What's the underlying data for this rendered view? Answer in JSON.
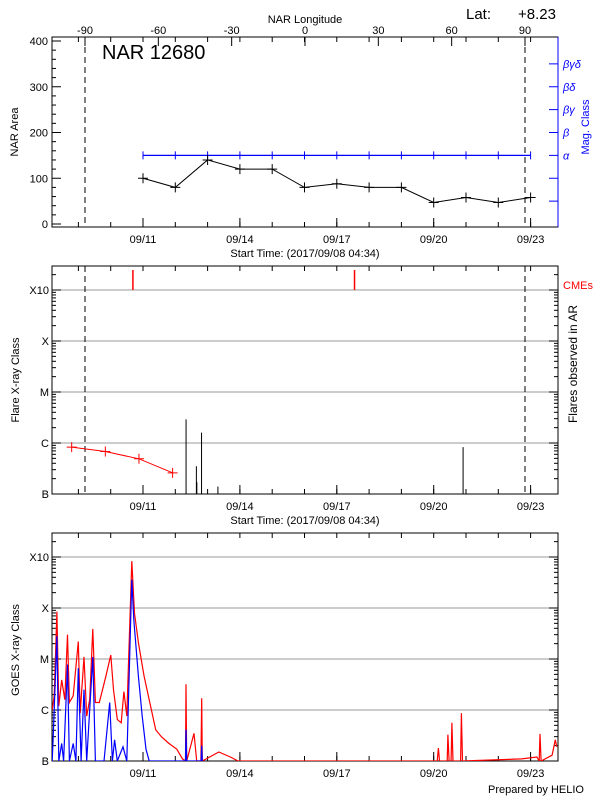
{
  "header": {
    "top_axis_title": "NAR Longitude",
    "lat_label": "Lat:",
    "lat_value": "+8.23",
    "region_title": "NAR 12680",
    "credit": "Prepared by HELIO"
  },
  "colors": {
    "axis": "#000000",
    "mag_class": "#0000ff",
    "flare_red": "#ff0000",
    "goes_long": "#ff0000",
    "goes_short": "#0000ff",
    "grid": "#999999"
  },
  "chart_data": [
    {
      "type": "line",
      "title": "NAR 12680",
      "xlabel": "Start Time: (2017/09/08 04:34)",
      "ylabel": "NAR Area",
      "y2label": "Mag. Class",
      "x_top_label": "NAR Longitude",
      "xlim": [
        "09/08 04:34",
        "09/23 20:40"
      ],
      "ylim": [
        -7,
        409
      ],
      "x_ticks": [
        "09/11",
        "09/14",
        "09/17",
        "09/20",
        "09/23"
      ],
      "y_ticks": [
        0,
        100,
        200,
        300,
        400
      ],
      "top_ticks": [
        -90,
        -60,
        -30,
        0,
        30,
        60,
        90
      ],
      "limb_longitudes": [
        -90,
        90
      ],
      "y2_ticks": [
        {
          "v": 50,
          "label": ""
        },
        {
          "v": 100,
          "label": ""
        },
        {
          "v": 150,
          "label": "α"
        },
        {
          "v": 200,
          "label": "β"
        },
        {
          "v": 250,
          "label": "βγ"
        },
        {
          "v": 300,
          "label": "βδ"
        },
        {
          "v": 350,
          "label": "βγδ"
        }
      ],
      "series": [
        {
          "kind": "area",
          "x": [
            "09/11 00:00",
            "09/12 00:00",
            "09/13 00:00",
            "09/14 00:00",
            "09/15 00:00",
            "09/16 00:00",
            "09/17 00:00",
            "09/18 00:00",
            "09/19 00:00",
            "09/20 00:00",
            "09/21 00:00",
            "09/22 00:00",
            "09/23 00:00"
          ],
          "values": [
            100,
            80,
            140,
            120,
            120,
            80,
            88,
            80,
            80,
            47,
            58,
            47,
            58
          ]
        },
        {
          "kind": "mag_class",
          "x": [
            "09/11 00:00",
            "09/12 00:00",
            "09/13 00:00",
            "09/14 00:00",
            "09/15 00:00",
            "09/16 00:00",
            "09/17 00:00",
            "09/18 00:00",
            "09/19 00:00",
            "09/20 00:00",
            "09/21 00:00",
            "09/22 00:00",
            "09/23 00:00"
          ],
          "values": [
            "α",
            "α",
            "α",
            "α",
            "α",
            "α",
            "α",
            "α",
            "α",
            "α",
            "α",
            "α",
            "α"
          ]
        }
      ]
    },
    {
      "type": "bar",
      "xlabel": "Start Time: (2017/09/08 04:34)",
      "ylabel": "Flare X-ray Class",
      "y2label": "Flares observed in AR",
      "cme_label": "CMEs",
      "yscale": "log",
      "ylim": [
        1e-07,
        0.003
      ],
      "y_ticks": [
        {
          "v": 1e-07,
          "label": "B"
        },
        {
          "v": 1e-06,
          "label": "C"
        },
        {
          "v": 1e-05,
          "label": "M"
        },
        {
          "v": 0.0001,
          "label": "X"
        },
        {
          "v": 0.001,
          "label": "X10"
        }
      ],
      "x_ticks": [
        "09/11",
        "09/14",
        "09/17",
        "09/20",
        "09/23"
      ],
      "grid": true,
      "trend": {
        "x": [
          "09/08 19:00",
          "09/09 20:00",
          "09/10 21:00",
          "09/11 22:00"
        ],
        "values": [
          8.3e-07,
          6.8e-07,
          4.9e-07,
          2.6e-07
        ]
      },
      "flares": {
        "x": [
          "09/12 08:00",
          "09/12 15:40",
          "09/12 16:00",
          "09/12 19:30",
          "09/13 07:40",
          "09/20 21:50"
        ],
        "values": [
          2.9e-06,
          3.5e-07,
          1.7e-07,
          1.6e-06,
          1.4e-07,
          8.3e-07
        ]
      },
      "cmes": [
        "09/10 16:30",
        "09/17 13:10"
      ]
    },
    {
      "type": "line",
      "ylabel": "GOES X-ray Class",
      "yscale": "log",
      "ylim": [
        1e-07,
        0.003
      ],
      "y_ticks": [
        {
          "v": 1e-07,
          "label": "B"
        },
        {
          "v": 1e-06,
          "label": "C"
        },
        {
          "v": 1e-05,
          "label": "M"
        },
        {
          "v": 0.0001,
          "label": "X"
        },
        {
          "v": 0.001,
          "label": "X10"
        }
      ],
      "x_ticks": [
        "09/11",
        "09/14",
        "09/17",
        "09/20",
        "09/23"
      ],
      "grid": true,
      "series": [
        {
          "kind": "long",
          "color": "#ff0000",
          "x": [
            "09/08 04:34",
            "09/08 06:00",
            "09/08 08:00",
            "09/08 09:25",
            "09/08 11:35",
            "09/08 13:55",
            "09/08 15:55",
            "09/08 17:20",
            "09/08 20:10",
            "09/08 23:55",
            "09/09 01:20",
            "09/09 04:10",
            "09/09 06:10",
            "09/09 08:25",
            "09/09 10:40",
            "09/09 12:40",
            "09/09 15:30",
            "09/09 20:25",
            "09/10 00:05",
            "09/10 02:05",
            "09/10 04:55",
            "09/10 07:50",
            "09/10 09:50",
            "09/10 12:00",
            "09/10 15:40",
            "09/10 17:40",
            "09/10 20:35",
            "09/11 00:50",
            "09/11 05:05",
            "09/11 09:25",
            "09/11 13:40",
            "09/11 19:20",
            "09/12 01:05",
            "09/12 05:20",
            "09/12 07:35",
            "09/12 07:55",
            "09/12 08:30",
            "09/12 13:55",
            "09/12 15:55",
            "09/12 19:00",
            "09/12 19:35",
            "09/12 20:05",
            "09/13 08:20",
            "09/13 16:55",
            "09/13 22:35",
            "09/20 02:35",
            "09/20 03:30",
            "09/20 04:20",
            "09/20 10:00",
            "09/20 10:35",
            "09/20 11:25",
            "09/20 12:55",
            "09/20 13:30",
            "09/20 14:20",
            "09/20 20:00",
            "09/20 20:35",
            "09/20 21:25",
            "09/22 17:20",
            "09/23 04:40",
            "09/23 06:25",
            "09/23 07:00",
            "09/23 07:50",
            "09/23 16:00",
            "09/23 18:20",
            "09/23 19:30"
          ],
          "values": [
            1e-06,
            1.9e-06,
            8.5e-05,
            1.2e-06,
            3.9e-06,
            1.6e-06,
            3e-05,
            1.4e-06,
            1.9e-06,
            2.2e-05,
            8.7e-07,
            1.1e-05,
            7.6e-07,
            1.6e-06,
            3.9e-05,
            1.4e-06,
            1.4e-06,
            4.6e-06,
            1.2e-05,
            2.5e-06,
            6.5e-07,
            5.6e-07,
            2.3e-06,
            7.6e-07,
            0.00083,
            7.9e-05,
            2.1e-05,
            4.6e-06,
            1.4e-06,
            4.1e-07,
            3e-07,
            2.2e-07,
            1.7e-07,
            1.1e-07,
            1e-07,
            3.2e-06,
            1e-07,
            3.5e-07,
            1e-07,
            1e-07,
            1.7e-06,
            1e-07,
            1.5e-07,
            1.2e-07,
            1e-07,
            1e-07,
            1.8e-07,
            1e-07,
            1e-07,
            3.3e-07,
            1e-07,
            1e-07,
            5.6e-07,
            1e-07,
            1e-07,
            8.7e-07,
            1e-07,
            1.1e-07,
            1.2e-07,
            1e-07,
            3.4e-07,
            1e-07,
            1.3e-07,
            2.6e-07,
            1.9e-07
          ]
        },
        {
          "kind": "short",
          "color": "#0000ff",
          "x": [
            "09/08 04:34",
            "09/08 05:10",
            "09/08 08:00",
            "09/08 09:25",
            "09/08 11:35",
            "09/08 13:00",
            "09/08 15:55",
            "09/08 17:20",
            "09/08 20:10",
            "09/08 22:10",
            "09/08 23:55",
            "09/09 02:00",
            "09/09 04:10",
            "09/09 06:10",
            "09/09 10:40",
            "09/09 12:40",
            "09/09 19:00",
            "09/09 23:15",
            "09/10 01:15",
            "09/10 02:55",
            "09/10 04:55",
            "09/10 09:10",
            "09/10 12:00",
            "09/10 15:40",
            "09/10 17:10",
            "09/10 20:35",
            "09/10 23:25",
            "09/11 02:15",
            "09/11 04:35",
            "09/12 07:35",
            "09/12 07:55",
            "09/12 08:30",
            "09/12 19:10",
            "09/12 19:35",
            "09/12 20:05"
          ],
          "values": [
            1e-08,
            2.6e-07,
            2.8e-05,
            1e-08,
            2.2e-07,
            1e-08,
            7.8e-06,
            1e-08,
            2.2e-07,
            1e-08,
            6.6e-06,
            1e-08,
            2.5e-06,
            1e-08,
            1.1e-05,
            1e-08,
            1e-08,
            1.4e-06,
            1e-08,
            2.6e-07,
            1e-08,
            1.9e-07,
            1e-08,
            0.00036,
            5.9e-05,
            4.6e-06,
            7.6e-07,
            1.7e-07,
            1e-08,
            1e-08,
            4.1e-07,
            1e-08,
            1e-08,
            2e-07,
            1e-08
          ]
        }
      ]
    }
  ]
}
